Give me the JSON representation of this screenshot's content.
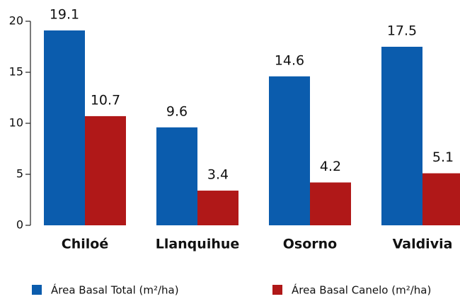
{
  "chart_data": {
    "type": "bar",
    "categories": [
      "Chiloé",
      "Llanquihue",
      "Osorno",
      "Valdivia"
    ],
    "series": [
      {
        "name": "Área Basal Total (m²/ha)",
        "color": "#0b5cad",
        "values": [
          19.1,
          9.6,
          14.6,
          17.5
        ]
      },
      {
        "name": "Área Basal Canelo (m²/ha)",
        "color": "#b01818",
        "values": [
          10.7,
          3.4,
          4.2,
          5.1
        ]
      }
    ],
    "ylim": [
      0,
      20
    ],
    "yticks": [
      0,
      5,
      10,
      15,
      20
    ],
    "grid": false,
    "legend": "bottom"
  }
}
